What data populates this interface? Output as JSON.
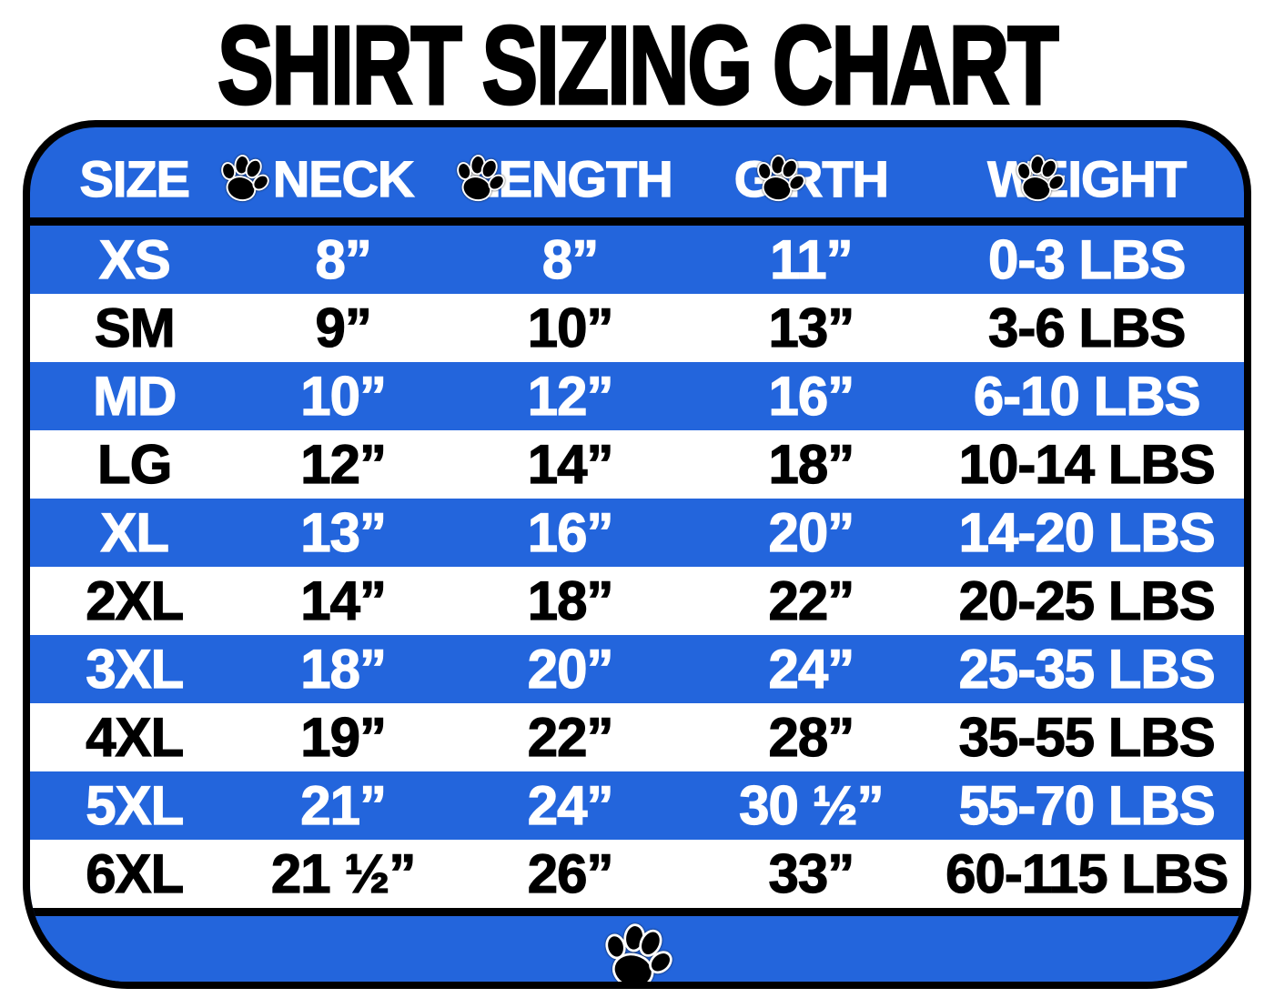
{
  "title": "SHIRT SIZING CHART",
  "colors": {
    "blue": "#2365DC",
    "white": "#FFFFFF",
    "black": "#000000"
  },
  "icons": {
    "header_separator": "paw-icon",
    "footer": "paw-icon"
  },
  "table": {
    "headers": [
      "SIZE",
      "NECK",
      "LENGTH",
      "GIRTH",
      "WEIGHT"
    ],
    "rows": [
      {
        "size": "XS",
        "neck": "8”",
        "length": "8”",
        "girth": "11”",
        "weight": "0-3 LBS"
      },
      {
        "size": "SM",
        "neck": "9”",
        "length": "10”",
        "girth": "13”",
        "weight": "3-6 LBS"
      },
      {
        "size": "MD",
        "neck": "10”",
        "length": "12”",
        "girth": "16”",
        "weight": "6-10 LBS"
      },
      {
        "size": "LG",
        "neck": "12”",
        "length": "14”",
        "girth": "18”",
        "weight": "10-14 LBS"
      },
      {
        "size": "XL",
        "neck": "13”",
        "length": "16”",
        "girth": "20”",
        "weight": "14-20 LBS"
      },
      {
        "size": "2XL",
        "neck": "14”",
        "length": "18”",
        "girth": "22”",
        "weight": "20-25 LBS"
      },
      {
        "size": "3XL",
        "neck": "18”",
        "length": "20”",
        "girth": "24”",
        "weight": "25-35 LBS"
      },
      {
        "size": "4XL",
        "neck": "19”",
        "length": "22”",
        "girth": "28”",
        "weight": "35-55 LBS"
      },
      {
        "size": "5XL",
        "neck": "21”",
        "length": "24”",
        "girth": "30 ½”",
        "weight": "55-70 LBS"
      },
      {
        "size": "6XL",
        "neck": "21 ½”",
        "length": "26”",
        "girth": "33”",
        "weight": "60-115 LBS"
      }
    ]
  },
  "chart_data": {
    "type": "table",
    "title": "SHIRT SIZING CHART",
    "columns": [
      "SIZE",
      "NECK",
      "LENGTH",
      "GIRTH",
      "WEIGHT"
    ],
    "rows": [
      [
        "XS",
        "8”",
        "8”",
        "11”",
        "0-3 LBS"
      ],
      [
        "SM",
        "9”",
        "10”",
        "13”",
        "3-6 LBS"
      ],
      [
        "MD",
        "10”",
        "12”",
        "16”",
        "6-10 LBS"
      ],
      [
        "LG",
        "12”",
        "14”",
        "18”",
        "10-14 LBS"
      ],
      [
        "XL",
        "13”",
        "16”",
        "20”",
        "14-20 LBS"
      ],
      [
        "2XL",
        "14”",
        "18”",
        "22”",
        "20-25 LBS"
      ],
      [
        "3XL",
        "18”",
        "20”",
        "24”",
        "25-35 LBS"
      ],
      [
        "4XL",
        "19”",
        "22”",
        "28”",
        "35-55 LBS"
      ],
      [
        "5XL",
        "21”",
        "24”",
        "30 ½”",
        "55-70 LBS"
      ],
      [
        "6XL",
        "21 ½”",
        "26”",
        "33”",
        "60-115 LBS"
      ]
    ],
    "layout": {
      "row_stripe_pattern": "odd rows blue with white text, even rows white with black text",
      "units": "inches for neck/length/girth, pounds for weight"
    }
  }
}
